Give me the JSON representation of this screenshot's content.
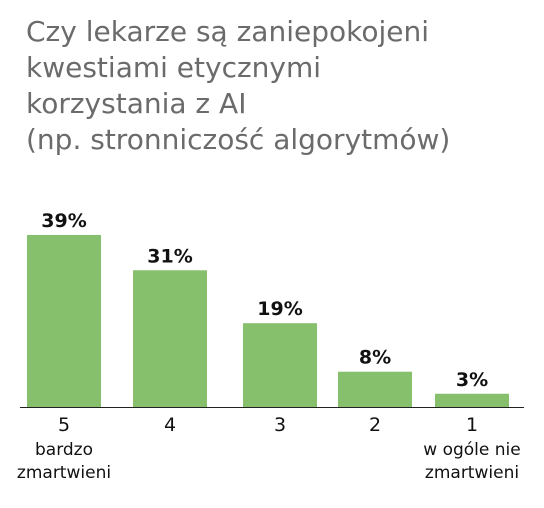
{
  "chart_data": {
    "type": "bar",
    "title_lines": [
      "Czy lekarze są zaniepokojeni",
      "kwestiami etycznymi",
      "korzystania z AI",
      "(np. stronniczość algorytmów)"
    ],
    "categories": [
      "5",
      "4",
      "3",
      "2",
      "1"
    ],
    "category_sublabels": [
      [
        "bardzo",
        "zmartwieni"
      ],
      [],
      [],
      [],
      [
        "w ogóle nie",
        "zmartwieni"
      ]
    ],
    "values": [
      39,
      31,
      19,
      8,
      3
    ],
    "value_labels": [
      "39%",
      "31%",
      "19%",
      "8%",
      "3%"
    ],
    "ylim": [
      0,
      39
    ],
    "grid": false,
    "bar_color": "#86c06c",
    "axis_color": "#222222"
  }
}
